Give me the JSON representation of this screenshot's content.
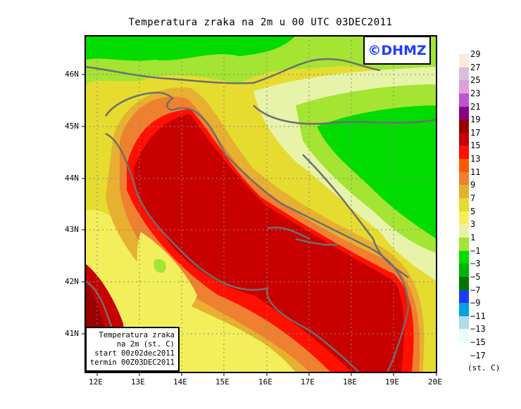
{
  "title": "Temperatura zraka na 2m u 00 UTC 03DEC2011",
  "logo": "©DHMZ",
  "info_box": [
    "Temperatura zraka",
    "na 2m (st. C)",
    "start 00z02dec2011",
    "termin 00Z03DEC2011"
  ],
  "map": {
    "lon_labels": [
      "12E",
      "13E",
      "14E",
      "15E",
      "16E",
      "17E",
      "18E",
      "19E",
      "20E"
    ],
    "lat_labels": [
      "46N",
      "45N",
      "44N",
      "43N",
      "42N",
      "41N"
    ],
    "lon_range": [
      11.7,
      20
    ],
    "lat_range": [
      40.25,
      46.75
    ]
  },
  "colorbar": {
    "labels": [
      "29",
      "27",
      "25",
      "23",
      "21",
      "19",
      "17",
      "15",
      "13",
      "11",
      "9",
      "7",
      "5",
      "3",
      "1",
      "−1",
      "−3",
      "−5",
      "−7",
      "−9",
      "−11",
      "−13",
      "−15",
      "−17"
    ],
    "colors": [
      "#fdebd8",
      "#d8bfd8",
      "#dda0dd",
      "#ba55d3",
      "#8b008b",
      "#9b0000",
      "#c80000",
      "#ff1000",
      "#ff5a00",
      "#ef8030",
      "#e8b030",
      "#e6dc30",
      "#f3ef5a",
      "#e6f3a8",
      "#a4e432",
      "#00dc00",
      "#00b400",
      "#007800",
      "#1e3cff",
      "#00a0e6",
      "#b0dde6",
      "#e8fff8"
    ],
    "unit": "(st. C)"
  }
}
